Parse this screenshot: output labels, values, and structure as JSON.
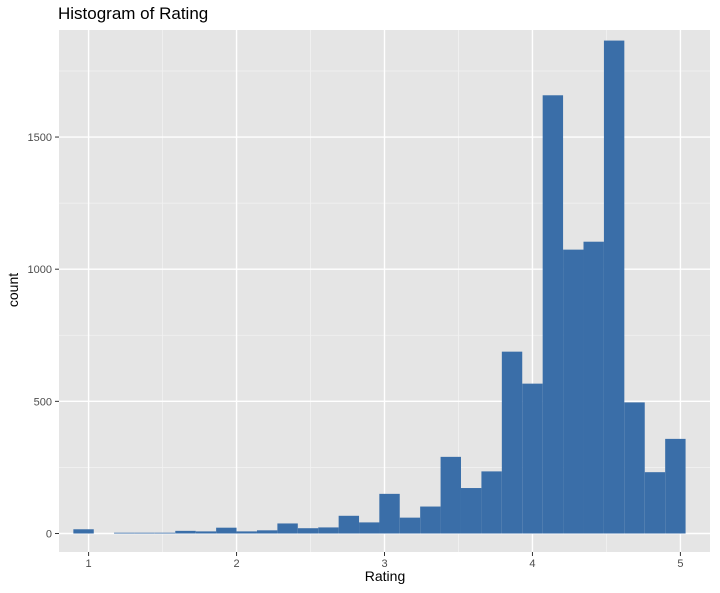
{
  "chart_data": {
    "type": "bar",
    "title": "Histogram of Rating",
    "xlabel": "Rating",
    "ylabel": "count",
    "xlim": [
      0.8,
      5.2
    ],
    "ylim": [
      -70,
      1905
    ],
    "x_ticks": [
      1,
      2,
      3,
      4,
      5
    ],
    "y_ticks": [
      0,
      500,
      1000,
      1500
    ],
    "bin_width": 0.1379,
    "bins": [
      {
        "x": 0.966,
        "count": 16
      },
      {
        "x": 1.103,
        "count": 0
      },
      {
        "x": 1.241,
        "count": 3
      },
      {
        "x": 1.379,
        "count": 3
      },
      {
        "x": 1.517,
        "count": 3
      },
      {
        "x": 1.655,
        "count": 10
      },
      {
        "x": 1.793,
        "count": 8
      },
      {
        "x": 1.931,
        "count": 22
      },
      {
        "x": 2.069,
        "count": 8
      },
      {
        "x": 2.207,
        "count": 12
      },
      {
        "x": 2.345,
        "count": 38
      },
      {
        "x": 2.483,
        "count": 20
      },
      {
        "x": 2.621,
        "count": 23
      },
      {
        "x": 2.759,
        "count": 67
      },
      {
        "x": 2.897,
        "count": 42
      },
      {
        "x": 3.034,
        "count": 150
      },
      {
        "x": 3.172,
        "count": 60
      },
      {
        "x": 3.31,
        "count": 102
      },
      {
        "x": 3.448,
        "count": 290
      },
      {
        "x": 3.586,
        "count": 172
      },
      {
        "x": 3.724,
        "count": 235
      },
      {
        "x": 3.862,
        "count": 688
      },
      {
        "x": 4.0,
        "count": 567
      },
      {
        "x": 4.138,
        "count": 1658
      },
      {
        "x": 4.276,
        "count": 1074
      },
      {
        "x": 4.414,
        "count": 1104
      },
      {
        "x": 4.552,
        "count": 1865
      },
      {
        "x": 4.69,
        "count": 496
      },
      {
        "x": 4.828,
        "count": 232
      },
      {
        "x": 4.966,
        "count": 358
      }
    ],
    "bar_color": "#3a6ea8",
    "panel_color": "#e5e5e5",
    "grid": true
  }
}
